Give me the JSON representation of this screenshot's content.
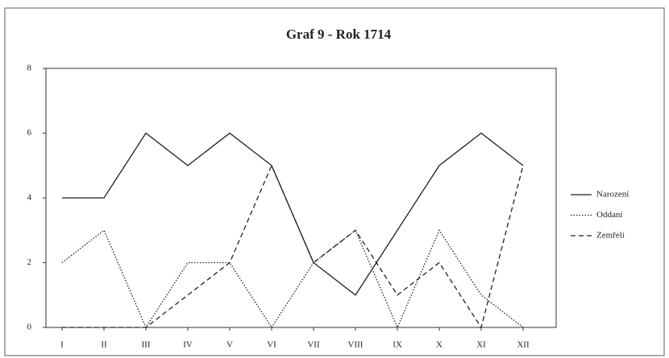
{
  "chart_data": {
    "type": "line",
    "title": "Graf 9 - Rok 1714",
    "categories": [
      "I",
      "II",
      "III",
      "IV",
      "V",
      "VI",
      "VII",
      "VIII",
      "IX",
      "X",
      "XI",
      "XII"
    ],
    "series": [
      {
        "name": "Narození",
        "color": "#222222",
        "line_style": "solid",
        "values": [
          4,
          4,
          6,
          5,
          6,
          5,
          2,
          1,
          3,
          5,
          6,
          5
        ]
      },
      {
        "name": "Oddaní",
        "color": "#222222",
        "line_style": "dotted",
        "values": [
          2,
          3,
          0,
          2,
          2,
          0,
          2,
          3,
          0,
          3,
          1,
          0
        ]
      },
      {
        "name": "Zemřelí",
        "color": "#222222",
        "line_style": "dashed",
        "values": [
          0,
          0,
          0,
          1,
          2,
          5,
          2,
          3,
          1,
          2,
          0,
          5
        ]
      }
    ],
    "ylim": [
      0,
      8
    ],
    "yticks": [
      0,
      2,
      4,
      6,
      8
    ],
    "legend": "right"
  }
}
